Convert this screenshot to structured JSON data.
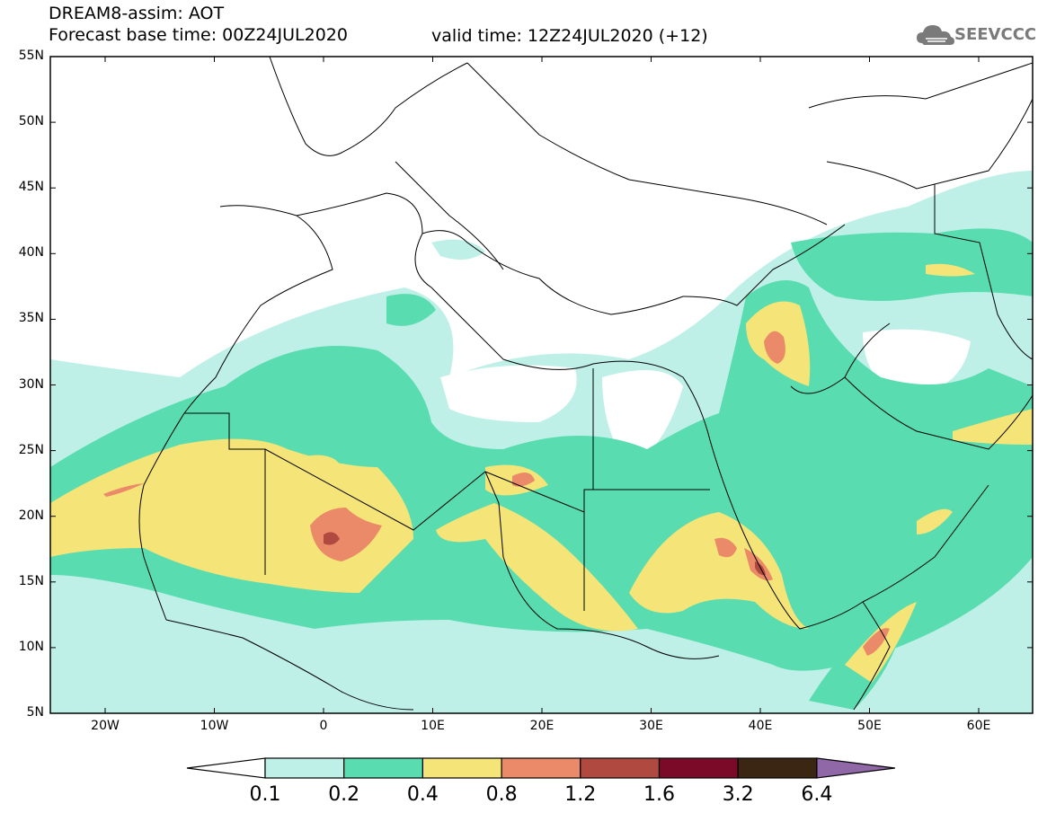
{
  "header": {
    "line1": "DREAM8-assim: AOT",
    "line2": "Forecast base time: 00Z24JUL2020",
    "valid": "valid time: 12Z24JUL2020 (+12)"
  },
  "logo": {
    "text": "SEEVCCC",
    "icon": "cloud-logo-icon"
  },
  "map": {
    "lat_labels": [
      "55N",
      "50N",
      "45N",
      "40N",
      "35N",
      "30N",
      "25N",
      "20N",
      "15N",
      "10N",
      "5N"
    ],
    "lon_labels": [
      "20W",
      "10W",
      "0",
      "10E",
      "20E",
      "30E",
      "40E",
      "50E",
      "60E"
    ],
    "colors": {
      "c01": "#bff0e8",
      "c02": "#58dcb0",
      "c04": "#f5e478",
      "c08": "#ea8a68",
      "c12": "#b04a40",
      "c16": "#7a0a28",
      "c32": "#3a2612",
      "c64": "#9068a8"
    }
  },
  "colorbar": {
    "labels": [
      "0.1",
      "0.2",
      "0.4",
      "0.8",
      "1.2",
      "1.6",
      "3.2",
      "6.4"
    ],
    "colors": [
      "#bff0e8",
      "#58dcb0",
      "#f5e478",
      "#ea8a68",
      "#b04a40",
      "#7a0a28",
      "#3a2612"
    ]
  }
}
